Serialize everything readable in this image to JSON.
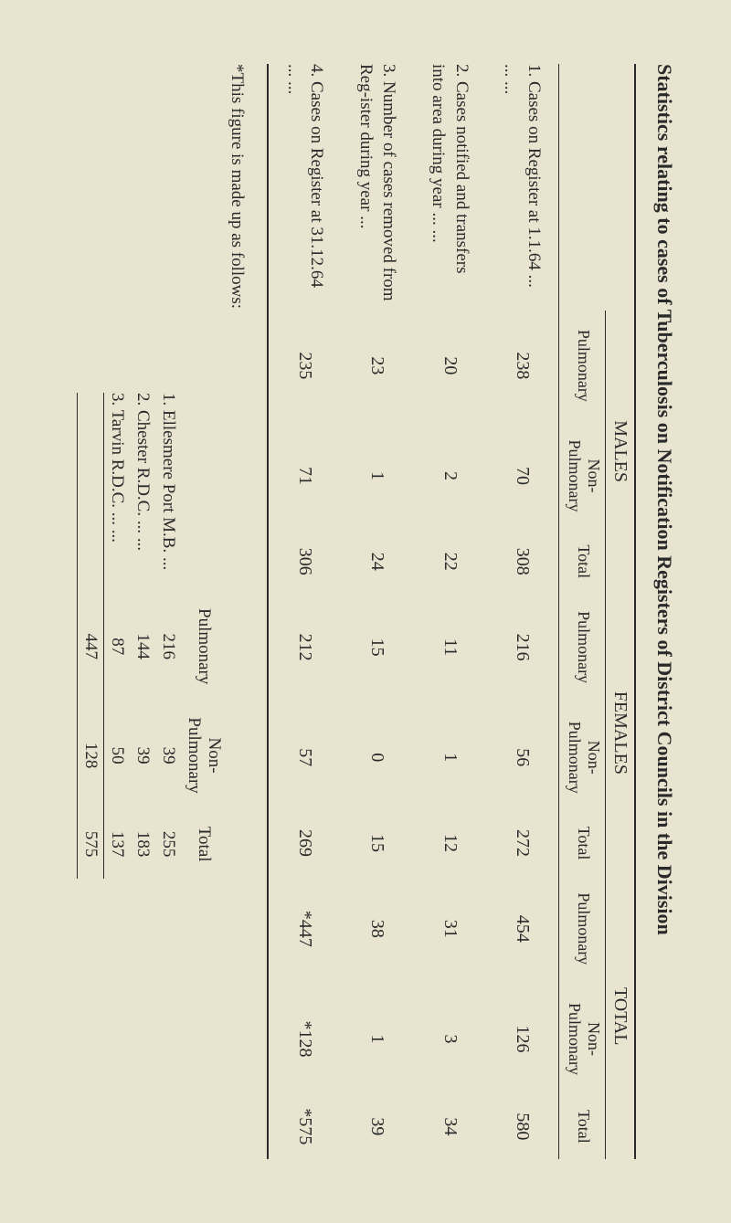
{
  "title": "Statistics relating to cases of Tuberculosis on Notification Registers of District Councils in the Division",
  "groups": {
    "males": "MALES",
    "females": "FEMALES",
    "total": "TOTAL"
  },
  "subheaders": {
    "pulmonary": "Pulmonary",
    "non_pulmonary": "Non-\nPulmonary",
    "total": "Total"
  },
  "rows": [
    {
      "label": "1. Cases on Register at 1.1.64 ... ... ...",
      "males_p": "238",
      "males_np": "70",
      "males_t": "308",
      "females_p": "216",
      "females_np": "56",
      "females_t": "272",
      "total_p": "454",
      "total_np": "126",
      "total_t": "580"
    },
    {
      "label": "2. Cases notified and transfers into area during year ... ...",
      "males_p": "20",
      "males_np": "2",
      "males_t": "22",
      "females_p": "11",
      "females_np": "1",
      "females_t": "12",
      "total_p": "31",
      "total_np": "3",
      "total_t": "34"
    },
    {
      "label": "3. Number of cases removed from Reg-ister during year ...",
      "males_p": "23",
      "males_np": "1",
      "males_t": "24",
      "females_p": "15",
      "females_np": "0",
      "females_t": "15",
      "total_p": "38",
      "total_np": "1",
      "total_t": "39"
    },
    {
      "label": "4. Cases on Register at 31.12.64 ... ...",
      "males_p": "235",
      "males_np": "71",
      "males_t": "306",
      "females_p": "212",
      "females_np": "57",
      "females_t": "269",
      "total_p": "*447",
      "total_np": "*128",
      "total_t": "*575"
    }
  ],
  "footnote": "*This figure is made up as follows:",
  "subrows": [
    {
      "label": "1. Ellesmere Port M.B. ...",
      "p": "216",
      "np": "39",
      "t": "255"
    },
    {
      "label": "2. Chester R.D.C. ... ...",
      "p": "144",
      "np": "39",
      "t": "183"
    },
    {
      "label": "3. Tarvin R.D.C. ... ...",
      "p": "87",
      "np": "50",
      "t": "137"
    }
  ],
  "subtotals": {
    "p": "447",
    "np": "128",
    "t": "575"
  }
}
